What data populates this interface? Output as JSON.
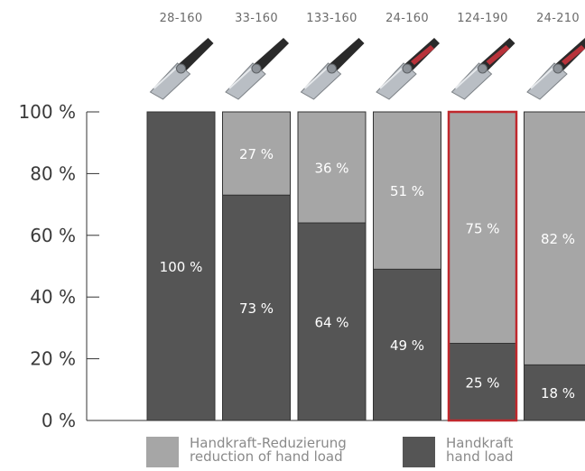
{
  "chart_data": {
    "type": "bar",
    "stacked": true,
    "categories": [
      "28-160",
      "33-160",
      "133-160",
      "24-160",
      "124-190",
      "24-210"
    ],
    "series": [
      {
        "name": "Handkraft / hand load",
        "values": [
          100,
          73,
          64,
          49,
          25,
          18
        ],
        "color": "#555555"
      },
      {
        "name": "Handkraft-Reduzierung / reduction of hand load",
        "values": [
          0,
          27,
          36,
          51,
          75,
          82
        ],
        "color": "#a6a6a6"
      }
    ],
    "bar_value_labels": {
      "bottom": [
        "100 %",
        "73 %",
        "64 %",
        "49 %",
        "25 %",
        "18 %"
      ],
      "top": [
        "",
        "27 %",
        "36 %",
        "51 %",
        "75 %",
        "82 %"
      ]
    },
    "highlighted_category": "124-190",
    "highlight_color": "#c0282d",
    "y_ticks": [
      "0 %",
      "20 %",
      "40 %",
      "60 %",
      "80 %",
      "100 %"
    ],
    "ylim": [
      0,
      100
    ],
    "images": "photo of pliers above each bar",
    "legend_position": "bottom"
  },
  "legend": {
    "reduction": {
      "line1": "Handkraft-Reduzierung",
      "line2": "reduction of hand load",
      "color": "#a6a6a6"
    },
    "load": {
      "line1": "Handkraft",
      "line2": "hand load",
      "color": "#555555"
    }
  }
}
